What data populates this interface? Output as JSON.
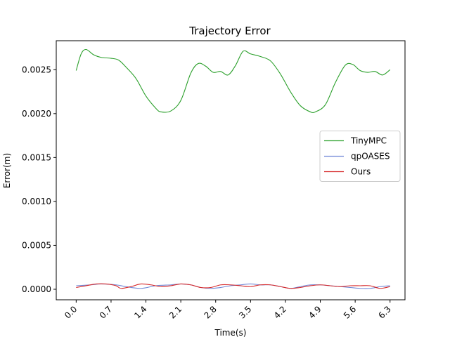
{
  "chart_data": {
    "type": "line",
    "title": "Trajectory Error",
    "xlabel": "Time(s)",
    "ylabel": "Error(m)",
    "xlim": [
      -0.4,
      6.6
    ],
    "ylim": [
      -0.00012,
      0.00283
    ],
    "xticks": [
      0.0,
      0.7,
      1.4,
      2.1,
      2.8,
      3.5,
      4.2,
      4.9,
      5.6,
      6.3
    ],
    "xtick_labels": [
      "0.0",
      "0.7",
      "1.4",
      "2.1",
      "2.8",
      "3.5",
      "4.2",
      "4.9",
      "5.6",
      "6.3"
    ],
    "yticks": [
      0.0,
      0.0005,
      0.001,
      0.0015,
      0.002,
      0.0025
    ],
    "ytick_labels": [
      "0.0000",
      "0.0005",
      "0.0010",
      "0.0015",
      "0.0020",
      "0.0025"
    ],
    "grid": false,
    "legend": "center-right",
    "series": [
      {
        "name": "TinyMPC",
        "color": "#2ca02c",
        "x": [
          0.0,
          0.1,
          0.2,
          0.35,
          0.5,
          0.7,
          0.85,
          1.0,
          1.2,
          1.4,
          1.6,
          1.7,
          1.9,
          2.1,
          2.3,
          2.45,
          2.6,
          2.75,
          2.9,
          3.05,
          3.2,
          3.35,
          3.5,
          3.7,
          3.9,
          4.1,
          4.3,
          4.5,
          4.7,
          4.8,
          5.0,
          5.2,
          5.4,
          5.55,
          5.7,
          5.85,
          6.0,
          6.15,
          6.3
        ],
        "y": [
          0.00249,
          0.00268,
          0.00273,
          0.00267,
          0.00264,
          0.00263,
          0.00261,
          0.00253,
          0.0024,
          0.0022,
          0.00206,
          0.00202,
          0.00203,
          0.00215,
          0.00246,
          0.00257,
          0.00254,
          0.00247,
          0.00248,
          0.00244,
          0.00255,
          0.00271,
          0.00268,
          0.00265,
          0.0026,
          0.00245,
          0.00225,
          0.00209,
          0.00202,
          0.00202,
          0.0021,
          0.00235,
          0.00255,
          0.00256,
          0.00249,
          0.00247,
          0.00248,
          0.00244,
          0.0025
        ]
      },
      {
        "name": "qpOASES",
        "color": "#6f86d6",
        "x": [
          0.0,
          0.3,
          0.5,
          0.8,
          1.0,
          1.3,
          1.6,
          1.9,
          2.1,
          2.3,
          2.5,
          2.7,
          2.9,
          3.1,
          3.3,
          3.5,
          3.7,
          3.9,
          4.1,
          4.3,
          4.5,
          4.7,
          4.9,
          5.1,
          5.3,
          5.5,
          5.7,
          5.9,
          6.1,
          6.3
        ],
        "y": [
          4e-05,
          5e-05,
          6e-05,
          5e-05,
          3e-05,
          1e-05,
          4e-05,
          5e-05,
          6e-05,
          5e-05,
          2e-05,
          1e-05,
          2e-05,
          4e-05,
          5e-05,
          6e-05,
          5e-05,
          5e-05,
          3e-05,
          1e-05,
          3e-05,
          5e-05,
          5e-05,
          4e-05,
          3e-05,
          2e-05,
          1e-05,
          1e-05,
          3e-05,
          4e-05
        ]
      },
      {
        "name": "Ours",
        "color": "#d62728",
        "x": [
          0.0,
          0.2,
          0.4,
          0.6,
          0.8,
          0.9,
          1.1,
          1.3,
          1.5,
          1.7,
          1.9,
          2.1,
          2.3,
          2.5,
          2.7,
          2.9,
          3.1,
          3.3,
          3.5,
          3.7,
          3.9,
          4.1,
          4.3,
          4.5,
          4.7,
          4.9,
          5.1,
          5.3,
          5.5,
          5.7,
          5.9,
          6.1,
          6.3
        ],
        "y": [
          2e-05,
          4e-05,
          6e-05,
          6e-05,
          4e-05,
          1e-05,
          3e-05,
          6e-05,
          5e-05,
          3e-05,
          4e-05,
          6e-05,
          5e-05,
          2e-05,
          2e-05,
          5e-05,
          5e-05,
          4e-05,
          3e-05,
          5e-05,
          5e-05,
          3e-05,
          1e-05,
          2e-05,
          4e-05,
          5e-05,
          4e-05,
          3e-05,
          4e-05,
          4e-05,
          4e-05,
          1e-05,
          3e-05
        ]
      }
    ]
  }
}
